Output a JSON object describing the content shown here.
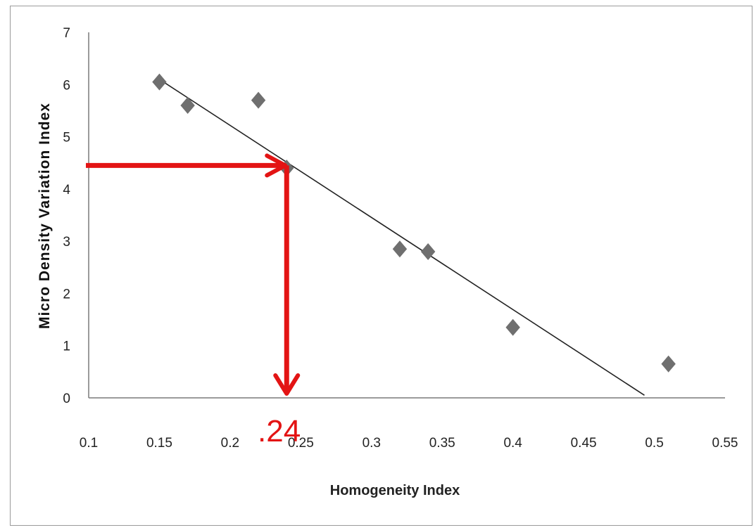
{
  "chart_data": {
    "type": "scatter",
    "xlabel": "Homogeneity Index",
    "ylabel": "Micro Density Variation  Index",
    "xlim": [
      0.1,
      0.55
    ],
    "ylim": [
      0,
      7
    ],
    "x_ticks": [
      "0.1",
      "0.15",
      "0.2",
      "0.25",
      "0.3",
      "0.35",
      "0.4",
      "0.45",
      "0.5",
      "0.55"
    ],
    "y_ticks": [
      "0",
      "1",
      "2",
      "3",
      "4",
      "5",
      "6",
      "7"
    ],
    "grid": false,
    "marker": "diamond",
    "marker_color": "#6f6f6f",
    "points": [
      {
        "x": 0.15,
        "y": 6.05
      },
      {
        "x": 0.17,
        "y": 5.6
      },
      {
        "x": 0.22,
        "y": 5.7
      },
      {
        "x": 0.24,
        "y": 4.4
      },
      {
        "x": 0.32,
        "y": 2.85
      },
      {
        "x": 0.34,
        "y": 2.8
      },
      {
        "x": 0.4,
        "y": 1.35
      },
      {
        "x": 0.51,
        "y": 0.65
      }
    ],
    "trendline": {
      "x": [
        0.15,
        0.493
      ],
      "y": [
        6.1,
        0.05
      ],
      "color": "#222222"
    },
    "annotation": {
      "label": ".24",
      "color": "#e31414",
      "y_value": 4.45,
      "x_value": 0.24
    }
  }
}
